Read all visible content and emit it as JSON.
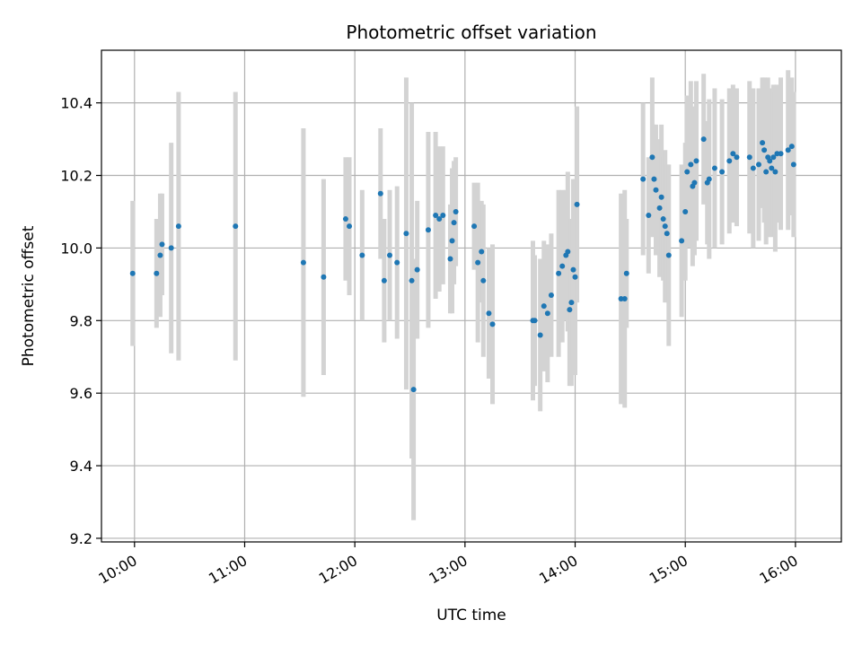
{
  "chart_data": {
    "type": "scatter",
    "title": "Photometric offset variation",
    "xlabel": "UTC time",
    "ylabel": "Photometric offset",
    "x_ticks": [
      "10:00",
      "11:00",
      "12:00",
      "13:00",
      "14:00",
      "15:00",
      "16:00"
    ],
    "y_ticks": [
      "9.2",
      "9.4",
      "9.6",
      "9.8",
      "10.0",
      "10.2",
      "10.4"
    ],
    "xlim": [
      "09:42",
      "16:25"
    ],
    "ylim": [
      9.19,
      10.545
    ],
    "grid": true,
    "colors": {
      "points": "#1f77b4",
      "errorbars": "#d3d3d3",
      "grid": "#b0b0b0"
    },
    "series": [
      {
        "x": [
          "09:59",
          "10:12",
          "10:14",
          "10:15",
          "10:20",
          "10:24",
          "10:55",
          "11:32",
          "11:43",
          "11:55",
          "11:57",
          "12:04",
          "12:14",
          "12:16",
          "12:19",
          "12:23",
          "12:28",
          "12:31",
          "12:32",
          "12:34",
          "12:40",
          "12:44",
          "12:46",
          "12:48",
          "12:52",
          "12:53",
          "12:54",
          "12:55",
          "13:05",
          "13:07",
          "13:09",
          "13:10",
          "13:13",
          "13:15",
          "13:37",
          "13:38",
          "13:41",
          "13:43",
          "13:45",
          "13:47",
          "13:51",
          "13:53",
          "13:55",
          "13:56",
          "13:57",
          "13:58",
          "13:59",
          "14:00",
          "14:01",
          "14:25",
          "14:27",
          "14:28",
          "14:37",
          "14:40",
          "14:42",
          "14:43",
          "14:44",
          "14:46",
          "14:47",
          "14:48",
          "14:49",
          "14:50",
          "14:51",
          "14:58",
          "15:00",
          "15:01",
          "15:03",
          "15:04",
          "15:05",
          "15:06",
          "15:10",
          "15:12",
          "15:13",
          "15:16",
          "15:20",
          "15:24",
          "15:26",
          "15:28",
          "15:35",
          "15:37",
          "15:40",
          "15:42",
          "15:43",
          "15:44",
          "15:45",
          "15:46",
          "15:47",
          "15:48",
          "15:49",
          "15:50",
          "15:52",
          "15:56",
          "15:58",
          "15:59"
        ],
        "y": [
          9.93,
          9.93,
          9.98,
          10.01,
          10.0,
          10.06,
          10.06,
          9.96,
          9.92,
          10.08,
          10.06,
          9.98,
          10.15,
          9.91,
          9.98,
          9.96,
          10.04,
          9.91,
          9.61,
          9.94,
          10.05,
          10.09,
          10.08,
          10.09,
          9.97,
          10.02,
          10.07,
          10.1,
          10.06,
          9.96,
          9.99,
          9.91,
          9.82,
          9.79,
          9.8,
          9.8,
          9.76,
          9.84,
          9.82,
          9.87,
          9.93,
          9.95,
          9.98,
          9.99,
          9.83,
          9.85,
          9.94,
          9.92,
          10.12,
          9.86,
          9.86,
          9.93,
          10.19,
          10.09,
          10.25,
          10.19,
          10.16,
          10.11,
          10.14,
          10.08,
          10.06,
          10.04,
          9.98,
          10.02,
          10.1,
          10.21,
          10.23,
          10.17,
          10.18,
          10.24,
          10.3,
          10.18,
          10.19,
          10.22,
          10.21,
          10.24,
          10.26,
          10.25,
          10.25,
          10.22,
          10.23,
          10.29,
          10.27,
          10.21,
          10.25,
          10.24,
          10.22,
          10.25,
          10.21,
          10.26,
          10.26,
          10.27,
          10.28,
          10.23
        ],
        "yerr": [
          0.2,
          0.15,
          0.17,
          0.14,
          0.29,
          0.37,
          0.37,
          0.37,
          0.27,
          0.17,
          0.19,
          0.18,
          0.18,
          0.17,
          0.18,
          0.21,
          0.43,
          0.49,
          0.36,
          0.19,
          0.27,
          0.23,
          0.2,
          0.19,
          0.15,
          0.2,
          0.17,
          0.15,
          0.12,
          0.22,
          0.14,
          0.21,
          0.18,
          0.22,
          0.22,
          0.18,
          0.21,
          0.18,
          0.19,
          0.17,
          0.23,
          0.21,
          0.18,
          0.22,
          0.21,
          0.23,
          0.25,
          0.27,
          0.27,
          0.29,
          0.3,
          0.15,
          0.21,
          0.16,
          0.22,
          0.15,
          0.18,
          0.19,
          0.2,
          0.17,
          0.21,
          0.19,
          0.25,
          0.21,
          0.19,
          0.21,
          0.23,
          0.22,
          0.2,
          0.22,
          0.18,
          0.17,
          0.22,
          0.22,
          0.2,
          0.2,
          0.19,
          0.19,
          0.21,
          0.22,
          0.21,
          0.18,
          0.2,
          0.2,
          0.22,
          0.2,
          0.19,
          0.2,
          0.22,
          0.19,
          0.21,
          0.22,
          0.19,
          0.2
        ]
      }
    ]
  }
}
